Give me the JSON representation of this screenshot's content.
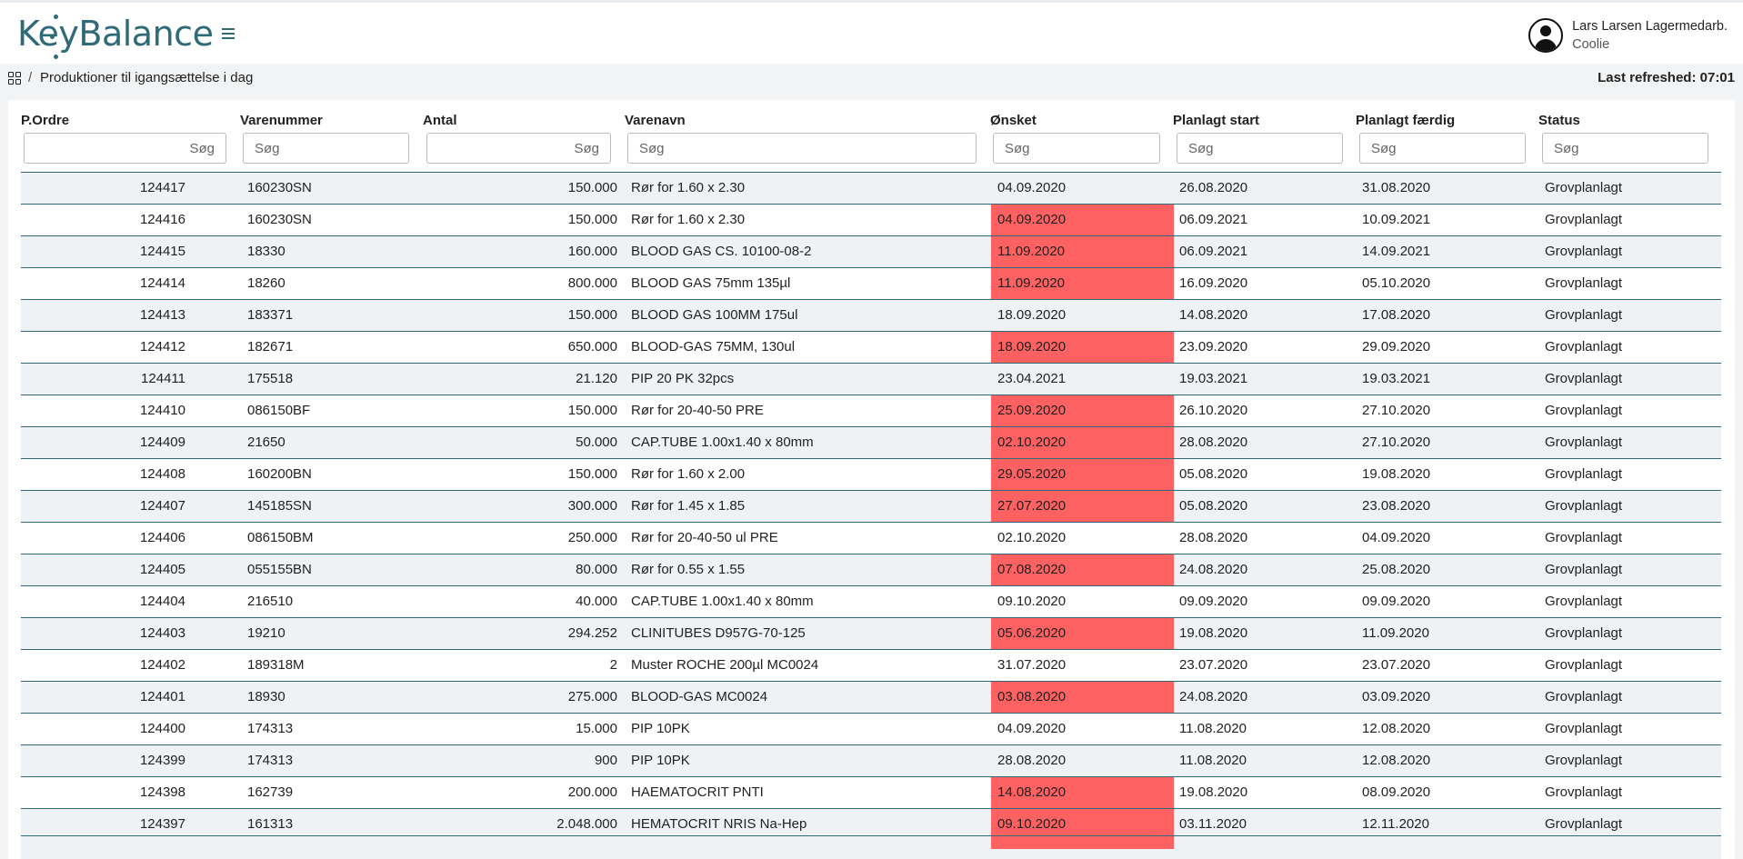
{
  "app": {
    "logo_text": "KeyBalance"
  },
  "user": {
    "name": "Lars Larsen Lagermedarb.",
    "role": "Coolie"
  },
  "breadcrumb": {
    "separator": "/",
    "title": "Produktioner til igangsættelse i dag"
  },
  "refresh": {
    "label": "Last refreshed: 07:01"
  },
  "table": {
    "columns": [
      {
        "label": "P.Ordre",
        "placeholder": "Søg"
      },
      {
        "label": "Varenummer",
        "placeholder": "Søg"
      },
      {
        "label": "Antal",
        "placeholder": "Søg"
      },
      {
        "label": "Varenavn",
        "placeholder": "Søg"
      },
      {
        "label": "Ønsket",
        "placeholder": "Søg"
      },
      {
        "label": "Planlagt start",
        "placeholder": "Søg"
      },
      {
        "label": "Planlagt færdig",
        "placeholder": "Søg"
      },
      {
        "label": "Status",
        "placeholder": "Søg"
      }
    ],
    "rows": [
      {
        "order": "124417",
        "item": "160230SN",
        "qty": "150.000",
        "name": "Rør for 1.60 x 2.30",
        "wanted": "04.09.2020",
        "late": false,
        "start": "26.08.2020",
        "end": "31.08.2020",
        "status": "Grovplanlagt"
      },
      {
        "order": "124416",
        "item": "160230SN",
        "qty": "150.000",
        "name": "Rør for 1.60 x 2.30",
        "wanted": "04.09.2020",
        "late": true,
        "start": "06.09.2021",
        "end": "10.09.2021",
        "status": "Grovplanlagt"
      },
      {
        "order": "124415",
        "item": "18330",
        "qty": "160.000",
        "name": "BLOOD GAS CS. 10100-08-2",
        "wanted": "11.09.2020",
        "late": true,
        "start": "06.09.2021",
        "end": "14.09.2021",
        "status": "Grovplanlagt"
      },
      {
        "order": "124414",
        "item": "18260",
        "qty": "800.000",
        "name": "BLOOD GAS 75mm 135µl",
        "wanted": "11.09.2020",
        "late": true,
        "start": "16.09.2020",
        "end": "05.10.2020",
        "status": "Grovplanlagt"
      },
      {
        "order": "124413",
        "item": "183371",
        "qty": "150.000",
        "name": "BLOOD GAS 100MM 175ul",
        "wanted": "18.09.2020",
        "late": false,
        "start": "14.08.2020",
        "end": "17.08.2020",
        "status": "Grovplanlagt"
      },
      {
        "order": "124412",
        "item": "182671",
        "qty": "650.000",
        "name": "BLOOD-GAS 75MM, 130ul",
        "wanted": "18.09.2020",
        "late": true,
        "start": "23.09.2020",
        "end": "29.09.2020",
        "status": "Grovplanlagt"
      },
      {
        "order": "124411",
        "item": "175518",
        "qty": "21.120",
        "name": "PIP 20 PK 32pcs",
        "wanted": "23.04.2021",
        "late": false,
        "start": "19.03.2021",
        "end": "19.03.2021",
        "status": "Grovplanlagt"
      },
      {
        "order": "124410",
        "item": "086150BF",
        "qty": "150.000",
        "name": "Rør for 20-40-50 PRE",
        "wanted": "25.09.2020",
        "late": true,
        "start": "26.10.2020",
        "end": "27.10.2020",
        "status": "Grovplanlagt"
      },
      {
        "order": "124409",
        "item": "21650",
        "qty": "50.000",
        "name": "CAP.TUBE 1.00x1.40 x 80mm",
        "wanted": "02.10.2020",
        "late": true,
        "start": "28.08.2020",
        "end": "27.10.2020",
        "status": "Grovplanlagt"
      },
      {
        "order": "124408",
        "item": "160200BN",
        "qty": "150.000",
        "name": "Rør for 1.60 x 2.00",
        "wanted": "29.05.2020",
        "late": true,
        "start": "05.08.2020",
        "end": "19.08.2020",
        "status": "Grovplanlagt"
      },
      {
        "order": "124407",
        "item": "145185SN",
        "qty": "300.000",
        "name": "Rør for 1.45 x 1.85",
        "wanted": "27.07.2020",
        "late": true,
        "start": "05.08.2020",
        "end": "23.08.2020",
        "status": "Grovplanlagt"
      },
      {
        "order": "124406",
        "item": "086150BM",
        "qty": "250.000",
        "name": "Rør for 20-40-50 ul PRE",
        "wanted": "02.10.2020",
        "late": false,
        "start": "28.08.2020",
        "end": "04.09.2020",
        "status": "Grovplanlagt"
      },
      {
        "order": "124405",
        "item": "055155BN",
        "qty": "80.000",
        "name": "Rør for 0.55 x 1.55",
        "wanted": "07.08.2020",
        "late": true,
        "start": "24.08.2020",
        "end": "25.08.2020",
        "status": "Grovplanlagt"
      },
      {
        "order": "124404",
        "item": "216510",
        "qty": "40.000",
        "name": "CAP.TUBE 1.00x1.40 x 80mm",
        "wanted": "09.10.2020",
        "late": false,
        "start": "09.09.2020",
        "end": "09.09.2020",
        "status": "Grovplanlagt"
      },
      {
        "order": "124403",
        "item": "19210",
        "qty": "294.252",
        "name": "CLINITUBES D957G-70-125",
        "wanted": "05.06.2020",
        "late": true,
        "start": "19.08.2020",
        "end": "11.09.2020",
        "status": "Grovplanlagt"
      },
      {
        "order": "124402",
        "item": "189318M",
        "qty": "2",
        "name": "Muster ROCHE 200µl MC0024",
        "wanted": "31.07.2020",
        "late": false,
        "start": "23.07.2020",
        "end": "23.07.2020",
        "status": "Grovplanlagt"
      },
      {
        "order": "124401",
        "item": "18930",
        "qty": "275.000",
        "name": "BLOOD-GAS MC0024",
        "wanted": "03.08.2020",
        "late": true,
        "start": "24.08.2020",
        "end": "03.09.2020",
        "status": "Grovplanlagt"
      },
      {
        "order": "124400",
        "item": "174313",
        "qty": "15.000",
        "name": "PIP 10PK",
        "wanted": "04.09.2020",
        "late": false,
        "start": "11.08.2020",
        "end": "12.08.2020",
        "status": "Grovplanlagt"
      },
      {
        "order": "124399",
        "item": "174313",
        "qty": "900",
        "name": "PIP 10PK",
        "wanted": "28.08.2020",
        "late": false,
        "start": "11.08.2020",
        "end": "12.08.2020",
        "status": "Grovplanlagt"
      },
      {
        "order": "124398",
        "item": "162739",
        "qty": "200.000",
        "name": "HAEMATOCRIT PNTI",
        "wanted": "14.08.2020",
        "late": true,
        "start": "19.08.2020",
        "end": "08.09.2020",
        "status": "Grovplanlagt"
      },
      {
        "order": "124397",
        "item": "161313",
        "qty": "2.048.000",
        "name": "HEMATOCRIT NRIS Na-Hep",
        "wanted": "09.10.2020",
        "late": true,
        "start": "03.11.2020",
        "end": "12.11.2020",
        "status": "Grovplanlagt"
      }
    ]
  },
  "colors": {
    "brand": "#2f6a77",
    "late_highlight": "#fe6162",
    "row_alt": "#eef2f5"
  },
  "icons": {
    "menu": "hamburger-icon",
    "user": "user-circle-icon",
    "home": "grid-icon"
  }
}
